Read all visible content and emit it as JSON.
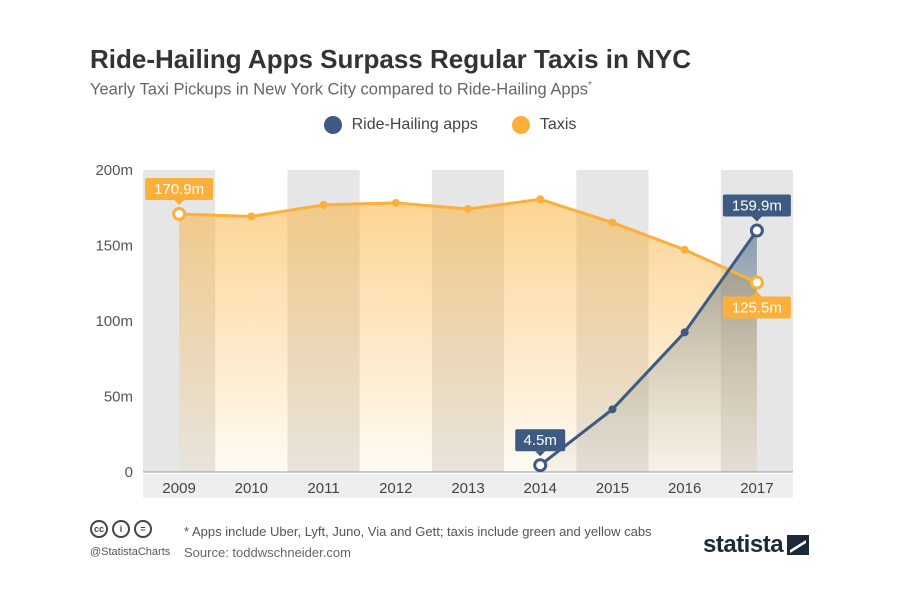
{
  "header": {
    "title": "Ride-Hailing Apps Surpass Regular Taxis in NYC",
    "subtitle": "Yearly Taxi Pickups in New York City compared to Ride-Hailing Apps",
    "subtitle_mark": "*"
  },
  "legend": {
    "ride_label": "Ride-Hailing apps",
    "taxi_label": "Taxis"
  },
  "colors": {
    "ride": "#3d5a80",
    "taxi": "#fbb03b",
    "band": "#e6e6e6",
    "axis": "#999999"
  },
  "chart_data": {
    "type": "line",
    "x": [
      "2009",
      "2010",
      "2011",
      "2012",
      "2013",
      "2014",
      "2015",
      "2016",
      "2017"
    ],
    "ylim": [
      0,
      200
    ],
    "yticks": [
      "0",
      "50m",
      "100m",
      "150m",
      "200m"
    ],
    "series": [
      {
        "name": "Ride-Hailing apps",
        "values": [
          null,
          null,
          null,
          null,
          null,
          4.5,
          41.5,
          92.5,
          159.9
        ]
      },
      {
        "name": "Taxis",
        "values": [
          170.9,
          169.2,
          176.9,
          178.2,
          174.2,
          180.6,
          165.2,
          147.2,
          125.5
        ]
      }
    ],
    "annotations": [
      {
        "series": "Taxis",
        "x": "2009",
        "label": "170.9m"
      },
      {
        "series": "Taxis",
        "x": "2017",
        "label": "125.5m"
      },
      {
        "series": "Ride-Hailing apps",
        "x": "2014",
        "label": "4.5m"
      },
      {
        "series": "Ride-Hailing apps",
        "x": "2017",
        "label": "159.9m"
      }
    ],
    "grid": false,
    "legend": "top-center"
  },
  "footer": {
    "note": "* Apps include Uber, Lyft, Juno, Via and Gett; taxis include green and yellow cabs",
    "source": "Source: toddwschneider.com",
    "handle": "@StatistaCharts",
    "cc_icons": [
      "cc",
      "i",
      "="
    ],
    "brand": "statista"
  }
}
